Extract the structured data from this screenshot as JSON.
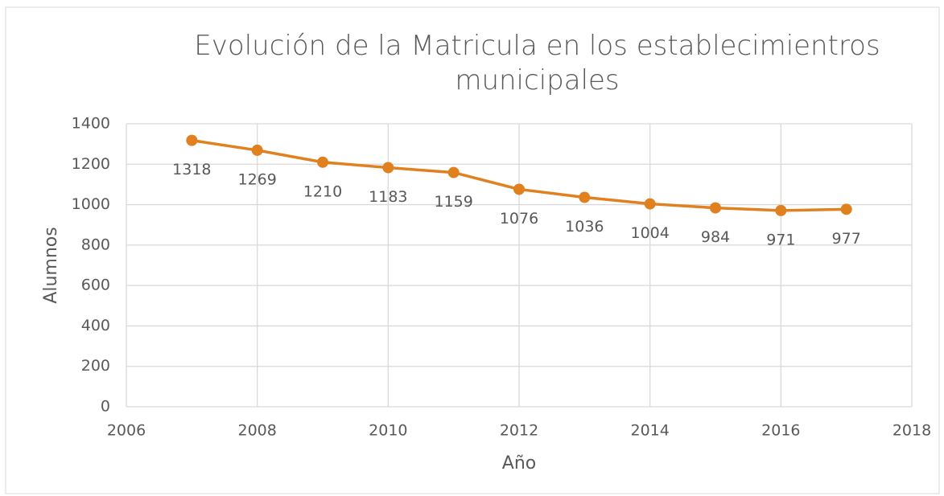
{
  "chart_data": {
    "type": "line",
    "title": "Evolución de la Matricula en los establecimientros municipales",
    "x_label": "Año",
    "y_label": "Alumnos",
    "x": [
      2007,
      2008,
      2009,
      2010,
      2011,
      2012,
      2013,
      2014,
      2015,
      2016,
      2017
    ],
    "values": [
      1318,
      1269,
      1210,
      1183,
      1159,
      1076,
      1036,
      1004,
      984,
      971,
      977
    ],
    "color": "#e0801f",
    "xlim": [
      2006,
      2018
    ],
    "xticks": [
      2006,
      2008,
      2010,
      2012,
      2014,
      2016,
      2018
    ],
    "ylim": [
      0,
      1400
    ],
    "yticks": [
      0,
      200,
      400,
      600,
      800,
      1000,
      1200,
      1400
    ],
    "grid": true
  }
}
